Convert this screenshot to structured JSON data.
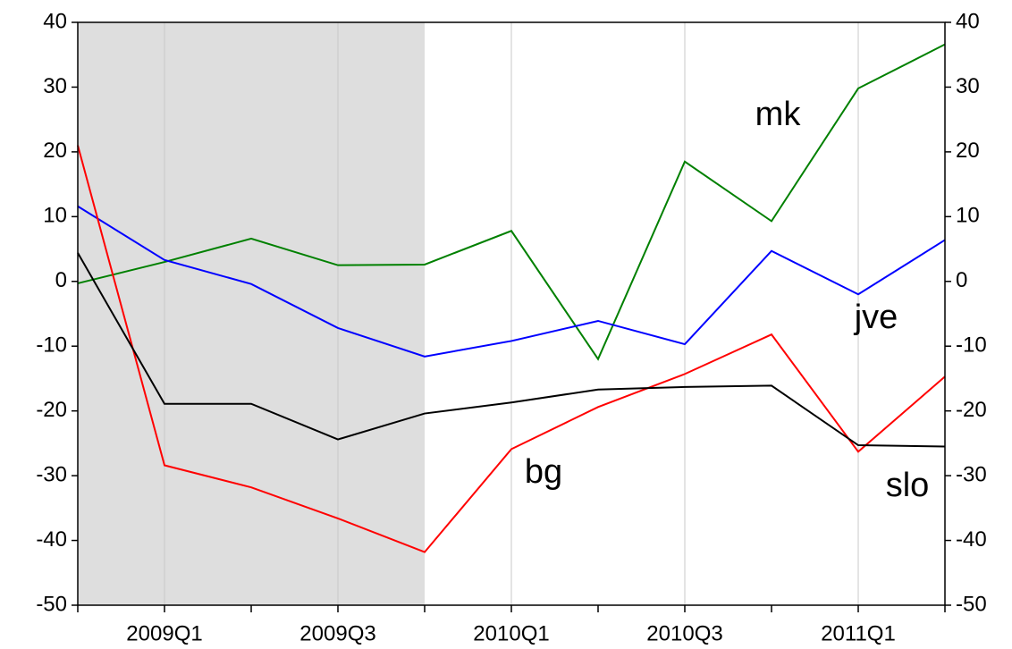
{
  "chart_data": {
    "type": "line",
    "categories": [
      null,
      "2009Q1",
      null,
      "2009Q3",
      null,
      "2010Q1",
      null,
      "2010Q3",
      null,
      "2011Q1",
      null
    ],
    "series": [
      {
        "name": "mk",
        "color": "#008000",
        "values": [
          -0.3,
          3,
          6.6,
          2.5,
          2.6,
          7.8,
          -12,
          18.5,
          9.3,
          29.8,
          36.6
        ]
      },
      {
        "name": "jve",
        "color": "#0000ff",
        "values": [
          11.6,
          3.3,
          -0.4,
          -7.2,
          -11.6,
          -9.2,
          -6.1,
          -9.7,
          4.7,
          -2.0,
          6.4
        ]
      },
      {
        "name": "bg",
        "color": "#ff0000",
        "values": [
          21.0,
          -28.4,
          -31.8,
          -36.6,
          -41.8,
          -25.9,
          -19.4,
          -14.3,
          -8.2,
          -26.3,
          -14.7
        ]
      },
      {
        "name": "slo",
        "color": "#000000",
        "values": [
          4.4,
          -18.9,
          -18.9,
          -24.4,
          -20.4,
          -18.7,
          -16.7,
          -16.3,
          -16.1,
          -25.3,
          -25.5
        ]
      }
    ],
    "ylim": [
      -50,
      40
    ],
    "yticks": [
      -50,
      -40,
      -30,
      -20,
      -10,
      0,
      10,
      20,
      30,
      40
    ],
    "y2lim": [
      -50,
      40
    ],
    "y2ticks": [
      -50,
      -40,
      -30,
      -20,
      -10,
      0,
      10,
      20,
      30,
      40
    ],
    "shaded_range": [
      0,
      4
    ],
    "shade_color": "#dedede",
    "grid": true
  }
}
